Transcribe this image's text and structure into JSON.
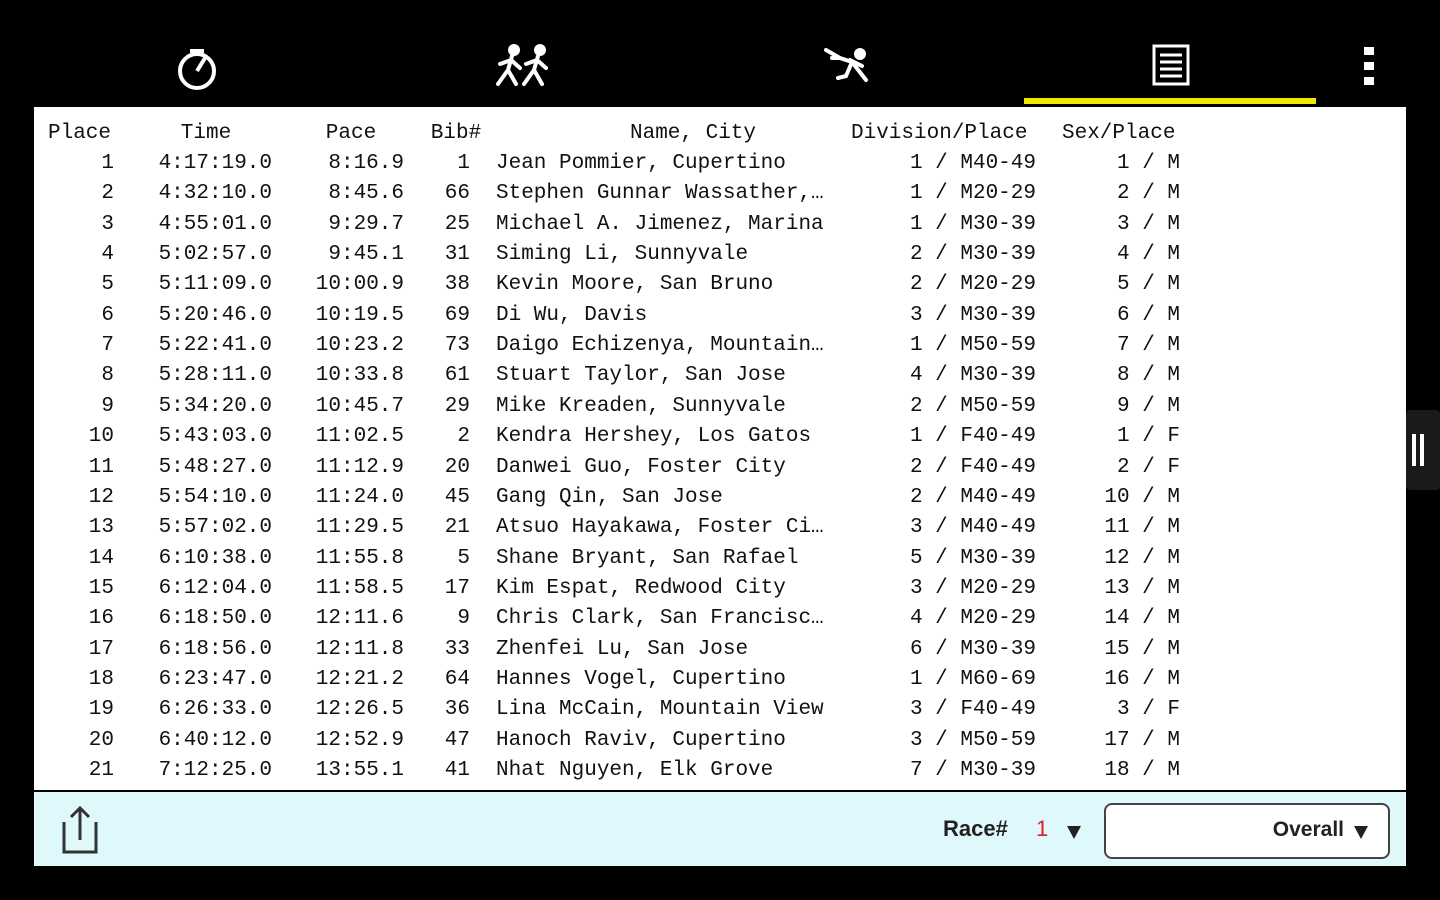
{
  "table": {
    "headers": [
      "Place",
      "Time",
      "Pace",
      "Bib#",
      "Name, City",
      "Division/Place",
      "Sex/Place"
    ],
    "rows": [
      [
        "1",
        "4:17:19.0",
        "8:16.9",
        "1",
        "Jean Pommier, Cupertino",
        "1 / M40-49",
        "1 / M"
      ],
      [
        "2",
        "4:32:10.0",
        "8:45.6",
        "66",
        "Stephen Gunnar Wassather,…",
        "1 / M20-29",
        "2 / M"
      ],
      [
        "3",
        "4:55:01.0",
        "9:29.7",
        "25",
        "Michael A. Jimenez, Marina",
        "1 / M30-39",
        "3 / M"
      ],
      [
        "4",
        "5:02:57.0",
        "9:45.1",
        "31",
        "Siming Li, Sunnyvale",
        "2 / M30-39",
        "4 / M"
      ],
      [
        "5",
        "5:11:09.0",
        "10:00.9",
        "38",
        "Kevin Moore, San Bruno",
        "2 / M20-29",
        "5 / M"
      ],
      [
        "6",
        "5:20:46.0",
        "10:19.5",
        "69",
        "Di Wu, Davis",
        "3 / M30-39",
        "6 / M"
      ],
      [
        "7",
        "5:22:41.0",
        "10:23.2",
        "73",
        "Daigo Echizenya, Mountain…",
        "1 / M50-59",
        "7 / M"
      ],
      [
        "8",
        "5:28:11.0",
        "10:33.8",
        "61",
        "Stuart Taylor, San Jose",
        "4 / M30-39",
        "8 / M"
      ],
      [
        "9",
        "5:34:20.0",
        "10:45.7",
        "29",
        "Mike Kreaden, Sunnyvale",
        "2 / M50-59",
        "9 / M"
      ],
      [
        "10",
        "5:43:03.0",
        "11:02.5",
        "2",
        "Kendra Hershey, Los Gatos",
        "1 / F40-49",
        "1 / F"
      ],
      [
        "11",
        "5:48:27.0",
        "11:12.9",
        "20",
        "Danwei Guo, Foster City",
        "2 / F40-49",
        "2 / F"
      ],
      [
        "12",
        "5:54:10.0",
        "11:24.0",
        "45",
        "Gang Qin, San Jose",
        "2 / M40-49",
        "10 / M"
      ],
      [
        "13",
        "5:57:02.0",
        "11:29.5",
        "21",
        "Atsuo Hayakawa, Foster Ci…",
        "3 / M40-49",
        "11 / M"
      ],
      [
        "14",
        "6:10:38.0",
        "11:55.8",
        "5",
        "Shane Bryant, San Rafael",
        "5 / M30-39",
        "12 / M"
      ],
      [
        "15",
        "6:12:04.0",
        "11:58.5",
        "17",
        "Kim Espat, Redwood City",
        "3 / M20-29",
        "13 / M"
      ],
      [
        "16",
        "6:18:50.0",
        "12:11.6",
        "9",
        "Chris Clark, San Francisc…",
        "4 / M20-29",
        "14 / M"
      ],
      [
        "17",
        "6:18:56.0",
        "12:11.8",
        "33",
        "Zhenfei Lu, San Jose",
        "6 / M30-39",
        "15 / M"
      ],
      [
        "18",
        "6:23:47.0",
        "12:21.2",
        "64",
        "Hannes Vogel, Cupertino",
        "1 / M60-69",
        "16 / M"
      ],
      [
        "19",
        "6:26:33.0",
        "12:26.5",
        "36",
        "Lina McCain, Mountain View",
        "3 / F40-49",
        "3 / F"
      ],
      [
        "20",
        "6:40:12.0",
        "12:52.9",
        "47",
        "Hanoch Raviv, Cupertino",
        "3 / M50-59",
        "17 / M"
      ],
      [
        "21",
        "7:12:25.0",
        "13:55.1",
        "41",
        "Nhat Nguyen, Elk Grove",
        "7 / M30-39",
        "18 / M"
      ]
    ]
  },
  "footer": {
    "race_label": "Race#",
    "race_number": "1",
    "filter": "Overall"
  }
}
